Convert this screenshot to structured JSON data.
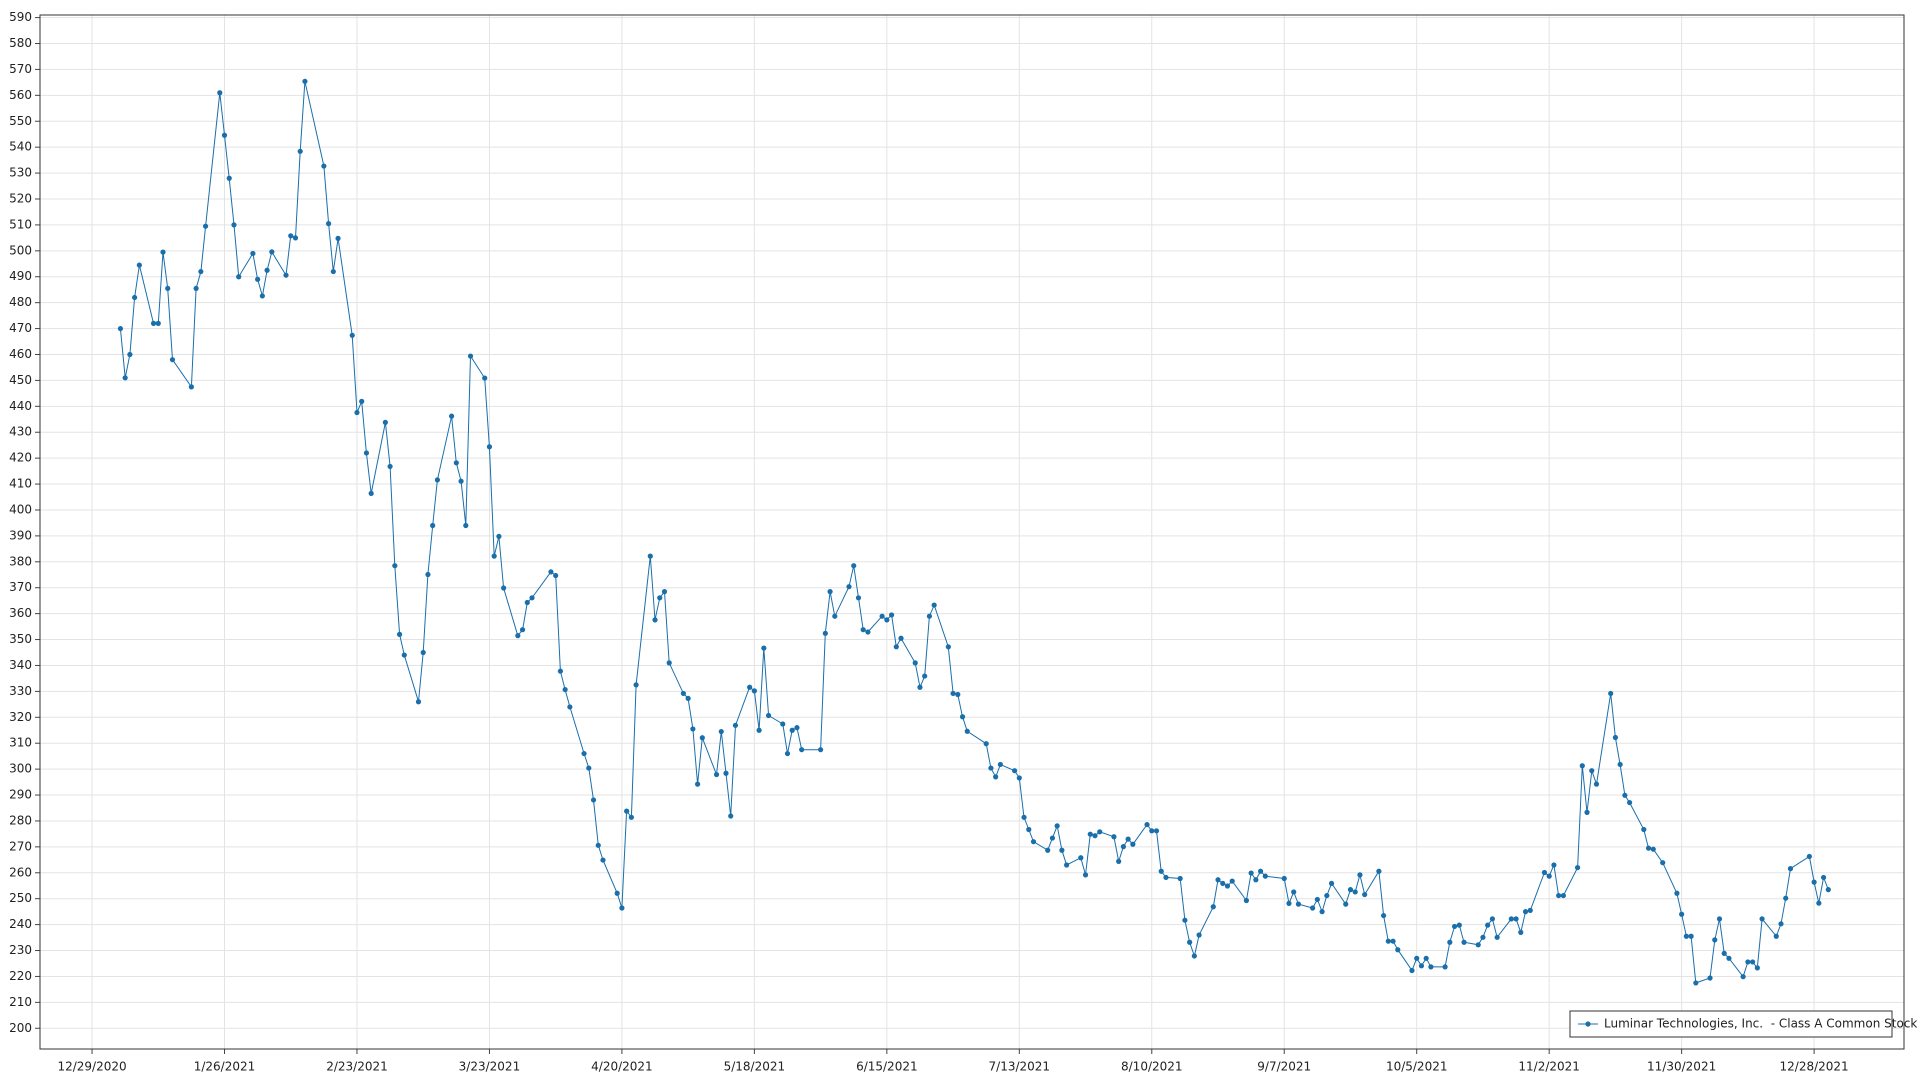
{
  "chart_data": {
    "type": "line",
    "x": [
      "1/4/2021",
      "1/5/2021",
      "1/6/2021",
      "1/7/2021",
      "1/8/2021",
      "1/11/2021",
      "1/12/2021",
      "1/13/2021",
      "1/14/2021",
      "1/15/2021",
      "1/19/2021",
      "1/20/2021",
      "1/21/2021",
      "1/22/2021",
      "1/25/2021",
      "1/26/2021",
      "1/27/2021",
      "1/28/2021",
      "1/29/2021",
      "2/1/2021",
      "2/2/2021",
      "2/3/2021",
      "2/4/2021",
      "2/5/2021",
      "2/8/2021",
      "2/9/2021",
      "2/10/2021",
      "2/11/2021",
      "2/12/2021",
      "2/16/2021",
      "2/17/2021",
      "2/18/2021",
      "2/19/2021",
      "2/22/2021",
      "2/23/2021",
      "2/24/2021",
      "2/25/2021",
      "2/26/2021",
      "3/1/2021",
      "3/2/2021",
      "3/3/2021",
      "3/4/2021",
      "3/5/2021",
      "3/8/2021",
      "3/9/2021",
      "3/10/2021",
      "3/11/2021",
      "3/12/2021",
      "3/15/2021",
      "3/16/2021",
      "3/17/2021",
      "3/18/2021",
      "3/19/2021",
      "3/22/2021",
      "3/23/2021",
      "3/24/2021",
      "3/25/2021",
      "3/26/2021",
      "3/29/2021",
      "3/30/2021",
      "3/31/2021",
      "4/1/2021",
      "4/5/2021",
      "4/6/2021",
      "4/7/2021",
      "4/8/2021",
      "4/9/2021",
      "4/12/2021",
      "4/13/2021",
      "4/14/2021",
      "4/15/2021",
      "4/16/2021",
      "4/19/2021",
      "4/20/2021",
      "4/21/2021",
      "4/22/2021",
      "4/23/2021",
      "4/26/2021",
      "4/27/2021",
      "4/28/2021",
      "4/29/2021",
      "4/30/2021",
      "5/3/2021",
      "5/4/2021",
      "5/5/2021",
      "5/6/2021",
      "5/7/2021",
      "5/10/2021",
      "5/11/2021",
      "5/12/2021",
      "5/13/2021",
      "5/14/2021",
      "5/17/2021",
      "5/18/2021",
      "5/19/2021",
      "5/20/2021",
      "5/21/2021",
      "5/24/2021",
      "5/25/2021",
      "5/26/2021",
      "5/27/2021",
      "5/28/2021",
      "6/1/2021",
      "6/2/2021",
      "6/3/2021",
      "6/4/2021",
      "6/7/2021",
      "6/8/2021",
      "6/9/2021",
      "6/10/2021",
      "6/11/2021",
      "6/14/2021",
      "6/15/2021",
      "6/16/2021",
      "6/17/2021",
      "6/18/2021",
      "6/21/2021",
      "6/22/2021",
      "6/23/2021",
      "6/24/2021",
      "6/25/2021",
      "6/28/2021",
      "6/29/2021",
      "6/30/2021",
      "7/1/2021",
      "7/2/2021",
      "7/6/2021",
      "7/7/2021",
      "7/8/2021",
      "7/9/2021",
      "7/12/2021",
      "7/13/2021",
      "7/14/2021",
      "7/15/2021",
      "7/16/2021",
      "7/19/2021",
      "7/20/2021",
      "7/21/2021",
      "7/22/2021",
      "7/23/2021",
      "7/26/2021",
      "7/27/2021",
      "7/28/2021",
      "7/29/2021",
      "7/30/2021",
      "8/2/2021",
      "8/3/2021",
      "8/4/2021",
      "8/5/2021",
      "8/6/2021",
      "8/9/2021",
      "8/10/2021",
      "8/11/2021",
      "8/12/2021",
      "8/13/2021",
      "8/16/2021",
      "8/17/2021",
      "8/18/2021",
      "8/19/2021",
      "8/20/2021",
      "8/23/2021",
      "8/24/2021",
      "8/25/2021",
      "8/26/2021",
      "8/27/2021",
      "8/30/2021",
      "8/31/2021",
      "9/1/2021",
      "9/2/2021",
      "9/3/2021",
      "9/7/2021",
      "9/8/2021",
      "9/9/2021",
      "9/10/2021",
      "9/13/2021",
      "9/14/2021",
      "9/15/2021",
      "9/16/2021",
      "9/17/2021",
      "9/20/2021",
      "9/21/2021",
      "9/22/2021",
      "9/23/2021",
      "9/24/2021",
      "9/27/2021",
      "9/28/2021",
      "9/29/2021",
      "9/30/2021",
      "10/1/2021",
      "10/4/2021",
      "10/5/2021",
      "10/6/2021",
      "10/7/2021",
      "10/8/2021",
      "10/11/2021",
      "10/12/2021",
      "10/13/2021",
      "10/14/2021",
      "10/15/2021",
      "10/18/2021",
      "10/19/2021",
      "10/20/2021",
      "10/21/2021",
      "10/22/2021",
      "10/25/2021",
      "10/26/2021",
      "10/27/2021",
      "10/28/2021",
      "10/29/2021",
      "11/1/2021",
      "11/2/2021",
      "11/3/2021",
      "11/4/2021",
      "11/5/2021",
      "11/8/2021",
      "11/9/2021",
      "11/10/2021",
      "11/11/2021",
      "11/12/2021",
      "11/15/2021",
      "11/16/2021",
      "11/17/2021",
      "11/18/2021",
      "11/19/2021",
      "11/22/2021",
      "11/23/2021",
      "11/24/2021",
      "11/26/2021",
      "11/29/2021",
      "11/30/2021",
      "12/1/2021",
      "12/2/2021",
      "12/3/2021",
      "12/6/2021",
      "12/7/2021",
      "12/8/2021",
      "12/9/2021",
      "12/10/2021",
      "12/13/2021",
      "12/14/2021",
      "12/15/2021",
      "12/16/2021",
      "12/17/2021",
      "12/20/2021",
      "12/21/2021",
      "12/22/2021",
      "12/23/2021",
      "12/27/2021",
      "12/28/2021",
      "12/29/2021",
      "12/30/2021",
      "12/31/2021"
    ],
    "series": [
      {
        "name": "Luminar Technologies, Inc.  - Class A Common Stock",
        "color": "#1a6fab",
        "values": [
          470,
          451,
          460,
          482,
          494.5,
          472,
          472,
          499.5,
          485.5,
          458,
          447.5,
          485.5,
          492,
          509.5,
          561,
          544.6,
          528,
          510,
          490,
          499,
          489,
          482.6,
          492.5,
          499.6,
          490.6,
          505.8,
          505,
          538.4,
          565.4,
          532.7,
          510.5,
          492,
          504.8,
          467.4,
          437.6,
          441.9,
          422,
          406.4,
          433.8,
          416.8,
          378.5,
          352,
          344,
          326,
          345,
          375.1,
          394,
          411.6,
          436.2,
          418.2,
          411.1,
          394,
          459.4,
          450.9,
          424.4,
          382.2,
          389.8,
          369.9,
          351.5,
          353.8,
          364.3,
          366.1,
          376.1,
          374.7,
          337.8,
          330.7,
          324,
          306,
          300.4,
          288.1,
          270.6,
          264.9,
          252.1,
          246.4,
          283.8,
          281.4,
          332.5,
          382.2,
          357.6,
          366.1,
          368.5,
          341,
          329.2,
          327.3,
          315.5,
          294.2,
          312.1,
          297.9,
          314.5,
          298.4,
          281.9,
          316.9,
          331.6,
          330.2,
          315,
          346.7,
          320.7,
          317.4,
          306,
          315,
          316,
          307.5,
          307.5,
          352.4,
          368.5,
          359,
          370.4,
          378.5,
          366.1,
          353.8,
          352.9,
          359,
          357.6,
          359.5,
          347.2,
          350.5,
          341,
          331.6,
          335.9,
          359,
          363.3,
          347.2,
          329.2,
          328.8,
          320.2,
          314.6,
          309.8,
          300.4,
          297,
          301.8,
          299.4,
          296.6,
          281.4,
          276.7,
          272,
          268.7,
          273.4,
          278.1,
          268.7,
          263,
          265.8,
          259.2,
          274.9,
          274.3,
          275.8,
          273.9,
          264.4,
          270.1,
          273,
          271,
          278.6,
          276.2,
          276.2,
          260.6,
          258.2,
          257.8,
          241.7,
          233.2,
          227.9,
          236,
          246.9,
          257.3,
          255.9,
          254.9,
          256.8,
          249.3,
          259.9,
          257.3,
          260.6,
          258.7,
          257.8,
          248.2,
          252.6,
          247.9,
          246.4,
          249.7,
          245,
          251.2,
          255.9,
          247.9,
          253.5,
          252.6,
          259.2,
          251.6,
          260.6,
          243.5,
          233.6,
          233.6,
          230.3,
          222.3,
          227,
          224.1,
          227,
          223.7,
          223.7,
          233.2,
          239.3,
          239.8,
          233.2,
          232.2,
          235.1,
          239.8,
          242.2,
          235.1,
          242.2,
          242.2,
          237,
          245,
          245.5,
          260.1,
          258.7,
          263,
          251.2,
          251.2,
          262,
          301.3,
          283.3,
          299.4,
          294.2,
          329.2,
          312.2,
          301.8,
          289.9,
          287.1,
          276.7,
          269.5,
          269.1,
          263.9,
          252.1,
          244,
          235.5,
          235.5,
          217.5,
          219.4,
          234.1,
          242.2,
          228.9,
          227,
          219.9,
          225.6,
          225.6,
          223.3,
          242.2,
          235.5,
          240.3,
          250.2,
          261.6,
          266.3,
          256.4,
          248.3,
          258.2,
          253.5
        ]
      }
    ],
    "xlim": [
      "12/18/2020",
      "1/16/2022"
    ],
    "xticks": [
      "12/29/2020",
      "1/26/2021",
      "2/23/2021",
      "3/23/2021",
      "4/20/2021",
      "5/18/2021",
      "6/15/2021",
      "7/13/2021",
      "8/10/2021",
      "9/7/2021",
      "10/5/2021",
      "11/2/2021",
      "11/30/2021",
      "12/28/2021"
    ],
    "ylim": [
      192,
      591
    ],
    "yticks": [
      200,
      210,
      220,
      230,
      240,
      250,
      260,
      270,
      280,
      290,
      300,
      310,
      320,
      330,
      340,
      350,
      360,
      370,
      380,
      390,
      400,
      410,
      420,
      430,
      440,
      450,
      460,
      470,
      480,
      490,
      500,
      510,
      520,
      530,
      540,
      550,
      560,
      570,
      580,
      590
    ],
    "grid": true,
    "legend": "lower right",
    "markers": true
  }
}
